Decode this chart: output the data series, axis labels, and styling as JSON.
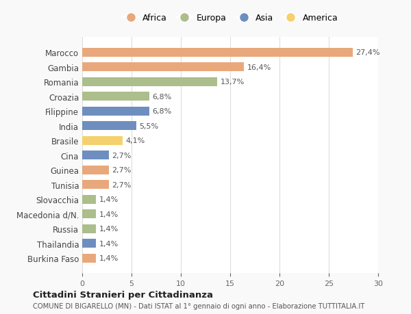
{
  "categories": [
    "Marocco",
    "Gambia",
    "Romania",
    "Croazia",
    "Filippine",
    "India",
    "Brasile",
    "Cina",
    "Guinea",
    "Tunisia",
    "Slovacchia",
    "Macedonia d/N.",
    "Russia",
    "Thailandia",
    "Burkina Faso"
  ],
  "values": [
    27.4,
    16.4,
    13.7,
    6.8,
    6.8,
    5.5,
    4.1,
    2.7,
    2.7,
    2.7,
    1.4,
    1.4,
    1.4,
    1.4,
    1.4
  ],
  "labels": [
    "27,4%",
    "16,4%",
    "13,7%",
    "6,8%",
    "6,8%",
    "5,5%",
    "4,1%",
    "2,7%",
    "2,7%",
    "2,7%",
    "1,4%",
    "1,4%",
    "1,4%",
    "1,4%",
    "1,4%"
  ],
  "continents": [
    "Africa",
    "Africa",
    "Europa",
    "Europa",
    "Asia",
    "Asia",
    "America",
    "Asia",
    "Africa",
    "Africa",
    "Europa",
    "Europa",
    "Europa",
    "Asia",
    "Africa"
  ],
  "colors": {
    "Africa": "#E8A87C",
    "Europa": "#ABBE8B",
    "Asia": "#6E8EBF",
    "America": "#F5D16E"
  },
  "legend_order": [
    "Africa",
    "Europa",
    "Asia",
    "America"
  ],
  "xlim": [
    0,
    30
  ],
  "xticks": [
    0,
    5,
    10,
    15,
    20,
    25,
    30
  ],
  "title": "Cittadini Stranieri per Cittadinanza",
  "subtitle": "COMUNE DI BIGARELLO (MN) - Dati ISTAT al 1° gennaio di ogni anno - Elaborazione TUTTITALIA.IT",
  "bg_color": "#f9f9f9",
  "bar_bg_color": "#ffffff",
  "figsize": [
    6.0,
    4.6
  ],
  "dpi": 100
}
